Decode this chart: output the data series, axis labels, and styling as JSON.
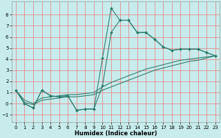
{
  "x_values": [
    0,
    1,
    2,
    3,
    4,
    5,
    6,
    7,
    8,
    9,
    10,
    11,
    12,
    13,
    14,
    15,
    16,
    17,
    18,
    19,
    20,
    21,
    22,
    23
  ],
  "line1": [
    1.2,
    0.0,
    -0.4,
    1.2,
    0.7,
    0.6,
    0.7,
    -0.6,
    -0.5,
    -0.5,
    4.1,
    8.6,
    7.5,
    7.5,
    6.4,
    6.4,
    5.8,
    5.1,
    4.8,
    4.9,
    4.9,
    4.9,
    4.6,
    4.3
  ],
  "line2": [
    1.2,
    0.0,
    -0.4,
    1.2,
    0.7,
    0.6,
    0.7,
    -0.6,
    -0.5,
    -0.5,
    1.6,
    6.4,
    7.5,
    7.5,
    6.4,
    6.4,
    5.8,
    5.1,
    4.8,
    4.9,
    4.9,
    4.9,
    4.6,
    4.3
  ],
  "line3": [
    1.2,
    0.3,
    0.0,
    0.5,
    0.6,
    0.7,
    0.8,
    0.8,
    0.9,
    1.0,
    1.5,
    1.9,
    2.2,
    2.5,
    2.8,
    3.1,
    3.3,
    3.5,
    3.7,
    3.9,
    4.0,
    4.1,
    4.2,
    4.3
  ],
  "line4": [
    1.2,
    0.1,
    -0.1,
    0.3,
    0.4,
    0.5,
    0.6,
    0.6,
    0.7,
    0.8,
    1.2,
    1.5,
    1.8,
    2.1,
    2.4,
    2.7,
    3.0,
    3.2,
    3.4,
    3.6,
    3.8,
    3.9,
    4.1,
    4.3
  ],
  "color": "#2d7d6e",
  "background_color": "#c8ecec",
  "grid_color": "#e88888",
  "xlabel": "Humidex (Indice chaleur)",
  "ylim": [
    -1.7,
    9.2
  ],
  "xlim": [
    -0.5,
    23.5
  ],
  "yticks": [
    -1,
    0,
    1,
    2,
    3,
    4,
    5,
    6,
    7,
    8
  ],
  "xticks": [
    0,
    1,
    2,
    3,
    4,
    5,
    6,
    7,
    8,
    9,
    10,
    11,
    12,
    13,
    14,
    15,
    16,
    17,
    18,
    19,
    20,
    21,
    22,
    23
  ],
  "marker_size": 2.0,
  "line_width": 0.8,
  "tick_fontsize": 5.0,
  "xlabel_fontsize": 6.0
}
